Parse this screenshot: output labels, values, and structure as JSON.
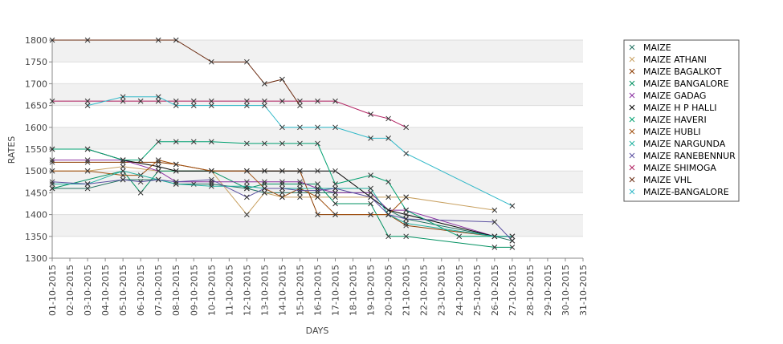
{
  "chart_data": {
    "type": "line",
    "title": "",
    "xlabel": "DAYS",
    "ylabel": "RATES",
    "ylim": [
      1300,
      1800
    ],
    "yticks": [
      1300,
      1350,
      1400,
      1450,
      1500,
      1550,
      1600,
      1650,
      1700,
      1750,
      1800
    ],
    "grid": "alternating horizontal bands",
    "legend_position": "right",
    "x": [
      "01-10-2015",
      "02-10-2015",
      "03-10-2015",
      "04-10-2015",
      "05-10-2015",
      "06-10-2015",
      "07-10-2015",
      "08-10-2015",
      "09-10-2015",
      "10-10-2015",
      "11-10-2015",
      "12-10-2015",
      "13-10-2015",
      "14-10-2015",
      "15-10-2015",
      "16-10-2015",
      "17-10-2015",
      "18-10-2015",
      "19-10-2015",
      "20-10-2015",
      "21-10-2015",
      "22-10-2015",
      "23-10-2015",
      "24-10-2015",
      "25-10-2015",
      "26-10-2015",
      "27-10-2015",
      "28-10-2015",
      "29-10-2015",
      "30-10-2015",
      "31-10-2015"
    ],
    "series": [
      {
        "name": "MAIZE",
        "color": "#1f6f5f",
        "points": [
          [
            "01-10-2015",
            1460
          ],
          [
            "03-10-2015",
            1460
          ],
          [
            "05-10-2015",
            1480
          ],
          [
            "07-10-2015",
            1480
          ],
          [
            "08-10-2015",
            1470
          ],
          [
            "09-10-2015",
            1470
          ],
          [
            "10-10-2015",
            1470
          ],
          [
            "12-10-2015",
            1460
          ],
          [
            "13-10-2015",
            1450
          ],
          [
            "14-10-2015",
            1450
          ],
          [
            "15-10-2015",
            1450
          ],
          [
            "16-10-2015",
            1450
          ],
          [
            "17-10-2015",
            1450
          ],
          [
            "19-10-2015",
            1450
          ],
          [
            "20-10-2015",
            1410
          ],
          [
            "21-10-2015",
            1390
          ],
          [
            "26-10-2015",
            1350
          ],
          [
            "27-10-2015",
            1340
          ]
        ]
      },
      {
        "name": "MAIZE ATHANI",
        "color": "#c8a060",
        "points": [
          [
            "01-10-2015",
            1500
          ],
          [
            "03-10-2015",
            1500
          ],
          [
            "05-10-2015",
            1510
          ],
          [
            "07-10-2015",
            1500
          ],
          [
            "08-10-2015",
            1500
          ],
          [
            "10-10-2015",
            1500
          ],
          [
            "12-10-2015",
            1400
          ],
          [
            "13-10-2015",
            1450
          ],
          [
            "14-10-2015",
            1440
          ],
          [
            "15-10-2015",
            1440
          ],
          [
            "16-10-2015",
            1440
          ],
          [
            "17-10-2015",
            1440
          ],
          [
            "19-10-2015",
            1440
          ],
          [
            "20-10-2015",
            1440
          ],
          [
            "21-10-2015",
            1440
          ],
          [
            "26-10-2015",
            1410
          ]
        ]
      },
      {
        "name": "MAIZE BAGALKOT",
        "color": "#8b3c00",
        "points": [
          [
            "01-10-2015",
            1520
          ],
          [
            "03-10-2015",
            1520
          ],
          [
            "05-10-2015",
            1520
          ],
          [
            "07-10-2015",
            1520
          ],
          [
            "08-10-2015",
            1515
          ],
          [
            "10-10-2015",
            1500
          ],
          [
            "12-10-2015",
            1500
          ],
          [
            "13-10-2015",
            1500
          ],
          [
            "14-10-2015",
            1500
          ],
          [
            "15-10-2015",
            1500
          ],
          [
            "16-10-2015",
            1400
          ],
          [
            "17-10-2015",
            1400
          ],
          [
            "19-10-2015",
            1400
          ],
          [
            "20-10-2015",
            1400
          ],
          [
            "21-10-2015",
            1375
          ],
          [
            "26-10-2015",
            1350
          ],
          [
            "27-10-2015",
            1350
          ]
        ]
      },
      {
        "name": "MAIZE BANGALORE",
        "color": "#009060",
        "points": [
          [
            "01-10-2015",
            1460
          ],
          [
            "05-10-2015",
            1500
          ],
          [
            "06-10-2015",
            1450
          ],
          [
            "07-10-2015",
            1500
          ],
          [
            "08-10-2015",
            1500
          ],
          [
            "10-10-2015",
            1500
          ],
          [
            "12-10-2015",
            1460
          ],
          [
            "13-10-2015",
            1470
          ],
          [
            "14-10-2015",
            1470
          ],
          [
            "15-10-2015",
            1470
          ],
          [
            "16-10-2015",
            1470
          ],
          [
            "17-10-2015",
            1425
          ],
          [
            "19-10-2015",
            1425
          ],
          [
            "20-10-2015",
            1350
          ],
          [
            "21-10-2015",
            1350
          ],
          [
            "26-10-2015",
            1325
          ],
          [
            "27-10-2015",
            1325
          ]
        ]
      },
      {
        "name": "MAIZE GADAG",
        "color": "#8a2fa0",
        "points": [
          [
            "01-10-2015",
            1525
          ],
          [
            "03-10-2015",
            1525
          ],
          [
            "05-10-2015",
            1525
          ],
          [
            "07-10-2015",
            1500
          ],
          [
            "08-10-2015",
            1475
          ],
          [
            "10-10-2015",
            1475
          ],
          [
            "12-10-2015",
            1475
          ],
          [
            "13-10-2015",
            1475
          ],
          [
            "14-10-2015",
            1475
          ],
          [
            "15-10-2015",
            1475
          ],
          [
            "16-10-2015",
            1460
          ],
          [
            "17-10-2015",
            1450
          ],
          [
            "19-10-2015",
            1450
          ],
          [
            "20-10-2015",
            1410
          ],
          [
            "21-10-2015",
            1410
          ],
          [
            "26-10-2015",
            1350
          ]
        ]
      },
      {
        "name": "MAIZE H P HALLI",
        "color": "#000000",
        "points": [
          [
            "01-10-2015",
            1550
          ],
          [
            "03-10-2015",
            1550
          ],
          [
            "05-10-2015",
            1525
          ],
          [
            "07-10-2015",
            1510
          ],
          [
            "08-10-2015",
            1500
          ],
          [
            "10-10-2015",
            1500
          ],
          [
            "12-10-2015",
            1500
          ],
          [
            "13-10-2015",
            1500
          ],
          [
            "14-10-2015",
            1500
          ],
          [
            "15-10-2015",
            1500
          ],
          [
            "16-10-2015",
            1500
          ],
          [
            "17-10-2015",
            1500
          ],
          [
            "19-10-2015",
            1440
          ],
          [
            "20-10-2015",
            1410
          ],
          [
            "21-10-2015",
            1400
          ],
          [
            "26-10-2015",
            1350
          ],
          [
            "27-10-2015",
            1350
          ]
        ]
      },
      {
        "name": "MAIZE HAVERI",
        "color": "#00a070",
        "points": [
          [
            "01-10-2015",
            1550
          ],
          [
            "03-10-2015",
            1550
          ],
          [
            "05-10-2015",
            1525
          ],
          [
            "06-10-2015",
            1525
          ],
          [
            "07-10-2015",
            1567
          ],
          [
            "08-10-2015",
            1567
          ],
          [
            "09-10-2015",
            1567
          ],
          [
            "10-10-2015",
            1567
          ],
          [
            "12-10-2015",
            1563
          ],
          [
            "13-10-2015",
            1563
          ],
          [
            "14-10-2015",
            1563
          ],
          [
            "15-10-2015",
            1563
          ],
          [
            "16-10-2015",
            1563
          ],
          [
            "17-10-2015",
            1470
          ],
          [
            "19-10-2015",
            1490
          ],
          [
            "20-10-2015",
            1475
          ],
          [
            "21-10-2015",
            1410
          ],
          [
            "24-10-2015",
            1350
          ],
          [
            "26-10-2015",
            1350
          ],
          [
            "27-10-2015",
            1350
          ]
        ]
      },
      {
        "name": "MAIZE HUBLI",
        "color": "#a05010",
        "points": [
          [
            "01-10-2015",
            1500
          ],
          [
            "03-10-2015",
            1500
          ],
          [
            "05-10-2015",
            1490
          ],
          [
            "06-10-2015",
            1490
          ],
          [
            "07-10-2015",
            1525
          ],
          [
            "08-10-2015",
            1515
          ],
          [
            "10-10-2015",
            1500
          ],
          [
            "12-10-2015",
            1500
          ],
          [
            "13-10-2015",
            1460
          ],
          [
            "14-10-2015",
            1440
          ],
          [
            "15-10-2015",
            1460
          ],
          [
            "16-10-2015",
            1440
          ],
          [
            "17-10-2015",
            1400
          ],
          [
            "19-10-2015",
            1400
          ],
          [
            "20-10-2015",
            1400
          ],
          [
            "21-10-2015",
            1440
          ]
        ]
      },
      {
        "name": "MAIZE NARGUNDA",
        "color": "#20b0a0",
        "points": [
          [
            "01-10-2015",
            1470
          ],
          [
            "03-10-2015",
            1470
          ],
          [
            "05-10-2015",
            1500
          ],
          [
            "07-10-2015",
            1480
          ],
          [
            "08-10-2015",
            1470
          ],
          [
            "10-10-2015",
            1465
          ],
          [
            "12-10-2015",
            1465
          ],
          [
            "13-10-2015",
            1460
          ],
          [
            "14-10-2015",
            1460
          ],
          [
            "15-10-2015",
            1460
          ],
          [
            "16-10-2015",
            1460
          ],
          [
            "17-10-2015",
            1460
          ],
          [
            "19-10-2015",
            1460
          ],
          [
            "20-10-2015",
            1400
          ],
          [
            "21-10-2015",
            1380
          ],
          [
            "26-10-2015",
            1350
          ],
          [
            "27-10-2015",
            1350
          ]
        ]
      },
      {
        "name": "MAIZE RANEBENNUR",
        "color": "#5a4fa0",
        "points": [
          [
            "01-10-2015",
            1475
          ],
          [
            "03-10-2015",
            1470
          ],
          [
            "05-10-2015",
            1480
          ],
          [
            "06-10-2015",
            1475
          ],
          [
            "07-10-2015",
            1480
          ],
          [
            "08-10-2015",
            1475
          ],
          [
            "10-10-2015",
            1480
          ],
          [
            "12-10-2015",
            1440
          ],
          [
            "13-10-2015",
            1460
          ],
          [
            "14-10-2015",
            1460
          ],
          [
            "15-10-2015",
            1455
          ],
          [
            "16-10-2015",
            1455
          ],
          [
            "17-10-2015",
            1460
          ],
          [
            "19-10-2015",
            1440
          ],
          [
            "20-10-2015",
            1400
          ],
          [
            "21-10-2015",
            1390
          ],
          [
            "26-10-2015",
            1383
          ],
          [
            "27-10-2015",
            1340
          ]
        ]
      },
      {
        "name": "MAIZE SHIMOGA",
        "color": "#b02060",
        "points": [
          [
            "01-10-2015",
            1660
          ],
          [
            "03-10-2015",
            1660
          ],
          [
            "05-10-2015",
            1660
          ],
          [
            "06-10-2015",
            1660
          ],
          [
            "07-10-2015",
            1660
          ],
          [
            "08-10-2015",
            1660
          ],
          [
            "09-10-2015",
            1660
          ],
          [
            "10-10-2015",
            1660
          ],
          [
            "12-10-2015",
            1660
          ],
          [
            "13-10-2015",
            1660
          ],
          [
            "14-10-2015",
            1660
          ],
          [
            "15-10-2015",
            1660
          ],
          [
            "16-10-2015",
            1660
          ],
          [
            "17-10-2015",
            1660
          ],
          [
            "19-10-2015",
            1630
          ],
          [
            "20-10-2015",
            1620
          ],
          [
            "21-10-2015",
            1600
          ]
        ]
      },
      {
        "name": "MAIZE VHL",
        "color": "#6a2a10",
        "points": [
          [
            "01-10-2015",
            1800
          ],
          [
            "03-10-2015",
            1800
          ],
          [
            "07-10-2015",
            1800
          ],
          [
            "08-10-2015",
            1800
          ],
          [
            "10-10-2015",
            1750
          ],
          [
            "12-10-2015",
            1750
          ],
          [
            "13-10-2015",
            1700
          ],
          [
            "14-10-2015",
            1710
          ],
          [
            "15-10-2015",
            1650
          ]
        ]
      },
      {
        "name": "MAIZE-BANGALORE",
        "color": "#30b8c8",
        "points": [
          [
            "03-10-2015",
            1650
          ],
          [
            "05-10-2015",
            1670
          ],
          [
            "07-10-2015",
            1670
          ],
          [
            "08-10-2015",
            1650
          ],
          [
            "09-10-2015",
            1650
          ],
          [
            "10-10-2015",
            1650
          ],
          [
            "12-10-2015",
            1650
          ],
          [
            "13-10-2015",
            1650
          ],
          [
            "14-10-2015",
            1600
          ],
          [
            "15-10-2015",
            1600
          ],
          [
            "16-10-2015",
            1600
          ],
          [
            "17-10-2015",
            1600
          ],
          [
            "19-10-2015",
            1575
          ],
          [
            "20-10-2015",
            1575
          ],
          [
            "21-10-2015",
            1540
          ],
          [
            "27-10-2015",
            1420
          ]
        ]
      }
    ]
  }
}
